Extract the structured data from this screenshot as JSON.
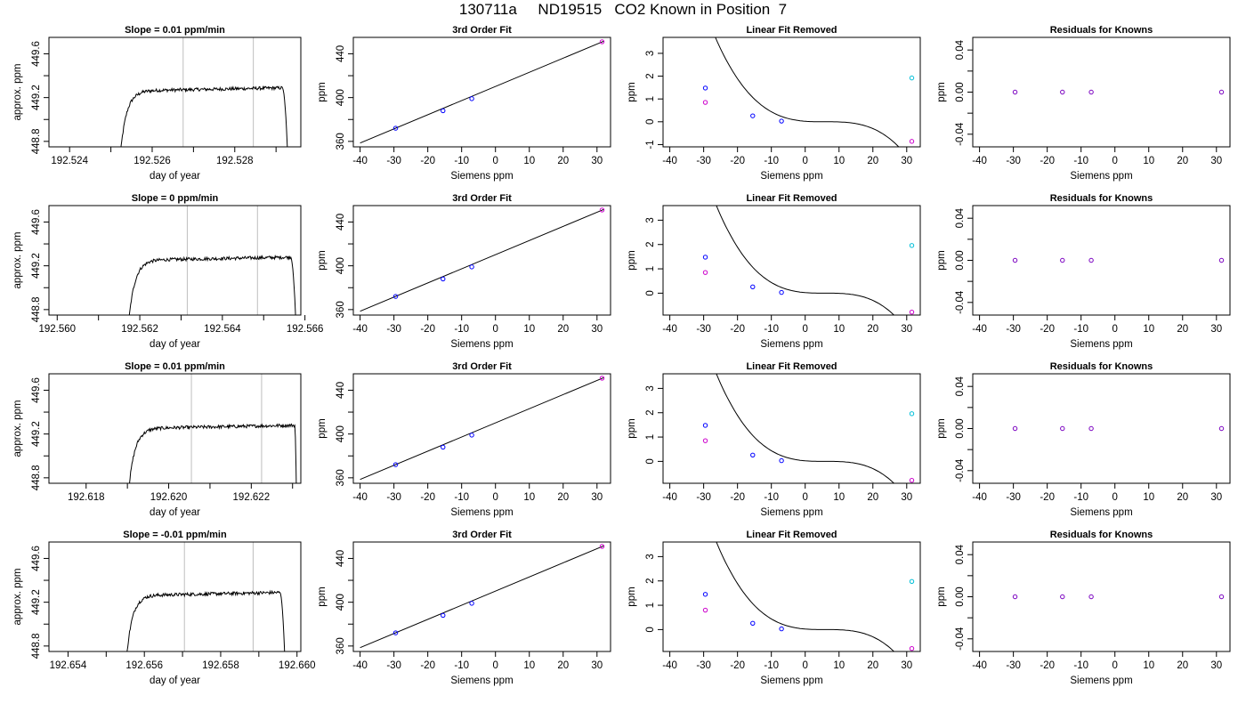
{
  "figure": {
    "title": "130711a     ND19515   CO2 Known in Position  7"
  },
  "colors": {
    "trace": "#000000",
    "window_line": "#bebebe",
    "known_points": "#0000ff",
    "high_known": "#cc00cc",
    "target_point": "#00bfd8",
    "residual_points": "#7a00c0"
  },
  "chart_data": [
    {
      "type": "line",
      "panel": "trace",
      "row": 1,
      "title": "Slope =  0.01  ppm/min",
      "xlabel": "day of year",
      "ylabel": "approx. ppm",
      "xlim": [
        192.5235,
        192.5296
      ],
      "ylim": [
        448.75,
        449.75
      ],
      "xticks": [
        192.524,
        192.525,
        192.526,
        192.527,
        192.528,
        192.529
      ],
      "xtick_labels": [
        "192.524",
        "",
        "192.526",
        "",
        "192.528",
        ""
      ],
      "yticks": [
        448.8,
        449.0,
        449.2,
        449.4,
        449.6
      ],
      "ytick_labels": [
        "448.8",
        "",
        "449.2",
        "",
        "449.6"
      ],
      "windows": [
        192.52675,
        192.52845
      ],
      "trace_start": 192.5252,
      "trace_end": 192.5293,
      "plateau": 449.29,
      "end_drop": 192.52915
    },
    {
      "type": "line",
      "panel": "trace",
      "row": 2,
      "title": "Slope =  0  ppm/min",
      "xlabel": "day of year",
      "ylabel": "approx. ppm",
      "xlim": [
        192.5598,
        192.5659
      ],
      "ylim": [
        448.75,
        449.75
      ],
      "xticks": [
        192.56,
        192.561,
        192.562,
        192.563,
        192.564,
        192.565,
        192.566
      ],
      "xtick_labels": [
        "192.560",
        "",
        "192.562",
        "",
        "192.564",
        "",
        "192.566"
      ],
      "yticks": [
        448.8,
        449.0,
        449.2,
        449.4,
        449.6
      ],
      "ytick_labels": [
        "448.8",
        "",
        "449.2",
        "",
        "449.6"
      ],
      "windows": [
        192.56315,
        192.56485
      ],
      "trace_start": 192.5617,
      "trace_end": 192.5658,
      "plateau": 449.28,
      "end_drop": 192.56565
    },
    {
      "type": "line",
      "panel": "trace",
      "row": 3,
      "title": "Slope =  0.01  ppm/min",
      "xlabel": "day of year",
      "ylabel": "approx. ppm",
      "xlim": [
        192.6171,
        192.6232
      ],
      "ylim": [
        448.75,
        449.75
      ],
      "xticks": [
        192.618,
        192.619,
        192.62,
        192.621,
        192.622,
        192.623
      ],
      "xtick_labels": [
        "192.618",
        "",
        "192.620",
        "",
        "192.622",
        ""
      ],
      "yticks": [
        448.8,
        449.0,
        449.2,
        449.4,
        449.6
      ],
      "ytick_labels": [
        "448.8",
        "",
        "449.2",
        "",
        "449.6"
      ],
      "windows": [
        192.62055,
        192.62225
      ],
      "trace_start": 192.619,
      "trace_end": 192.6231,
      "plateau": 449.28,
      "end_drop": 192.62305
    },
    {
      "type": "line",
      "panel": "trace",
      "row": 4,
      "title": "Slope =  -0.01  ppm/min",
      "xlabel": "day of year",
      "ylabel": "approx. ppm",
      "xlim": [
        192.6535,
        192.6601
      ],
      "ylim": [
        448.75,
        449.75
      ],
      "xticks": [
        192.654,
        192.655,
        192.656,
        192.657,
        192.658,
        192.659,
        192.66
      ],
      "xtick_labels": [
        "192.654",
        "",
        "192.656",
        "",
        "192.658",
        "",
        "192.660"
      ],
      "yticks": [
        448.8,
        449.0,
        449.2,
        449.4,
        449.6
      ],
      "ytick_labels": [
        "448.8",
        "",
        "449.2",
        "",
        "449.6"
      ],
      "windows": [
        192.65705,
        192.65885
      ],
      "trace_start": 192.6555,
      "trace_end": 192.6597,
      "plateau": 449.29,
      "end_drop": 192.65955
    },
    {
      "type": "scatter",
      "panel": "fit",
      "row": 1,
      "title": "3rd Order Fit",
      "xlabel": "Siemens ppm",
      "ylabel": "ppm",
      "xlim": [
        -42,
        34
      ],
      "ylim": [
        355,
        455
      ],
      "xticks": [
        -40,
        -30,
        -20,
        -10,
        0,
        10,
        20,
        30
      ],
      "yticks": [
        360,
        380,
        400,
        420,
        440
      ],
      "ytick_labels": [
        "360",
        "",
        "400",
        "",
        "440"
      ],
      "line": [
        [
          -40,
          358.5
        ],
        [
          32,
          451.5
        ]
      ],
      "points": [
        {
          "x": -29.5,
          "y": 372,
          "c": "known"
        },
        {
          "x": -15.5,
          "y": 388,
          "c": "known"
        },
        {
          "x": -7,
          "y": 399,
          "c": "known"
        },
        {
          "x": 31.5,
          "y": 451,
          "c": "high"
        }
      ]
    },
    {
      "type": "scatter",
      "panel": "fit",
      "row": 2,
      "title": "3rd Order Fit",
      "xlabel": "Siemens ppm",
      "ylabel": "ppm",
      "xlim": [
        -42,
        34
      ],
      "ylim": [
        355,
        455
      ],
      "xticks": [
        -40,
        -30,
        -20,
        -10,
        0,
        10,
        20,
        30
      ],
      "yticks": [
        360,
        380,
        400,
        420,
        440
      ],
      "ytick_labels": [
        "360",
        "",
        "400",
        "",
        "440"
      ],
      "line": [
        [
          -40,
          358.5
        ],
        [
          32,
          451.5
        ]
      ],
      "points": [
        {
          "x": -29.5,
          "y": 372,
          "c": "known"
        },
        {
          "x": -15.5,
          "y": 388,
          "c": "known"
        },
        {
          "x": -7,
          "y": 399,
          "c": "known"
        },
        {
          "x": 31.5,
          "y": 451,
          "c": "high"
        }
      ]
    },
    {
      "type": "scatter",
      "panel": "fit",
      "row": 3,
      "title": "3rd Order Fit",
      "xlabel": "Siemens ppm",
      "ylabel": "ppm",
      "xlim": [
        -42,
        34
      ],
      "ylim": [
        355,
        455
      ],
      "xticks": [
        -40,
        -30,
        -20,
        -10,
        0,
        10,
        20,
        30
      ],
      "yticks": [
        360,
        380,
        400,
        420,
        440
      ],
      "ytick_labels": [
        "360",
        "",
        "400",
        "",
        "440"
      ],
      "line": [
        [
          -40,
          358.5
        ],
        [
          32,
          451.5
        ]
      ],
      "points": [
        {
          "x": -29.5,
          "y": 372,
          "c": "known"
        },
        {
          "x": -15.5,
          "y": 388,
          "c": "known"
        },
        {
          "x": -7,
          "y": 399,
          "c": "known"
        },
        {
          "x": 31.5,
          "y": 451,
          "c": "high"
        }
      ]
    },
    {
      "type": "scatter",
      "panel": "fit",
      "row": 4,
      "title": "3rd Order Fit",
      "xlabel": "Siemens ppm",
      "ylabel": "ppm",
      "xlim": [
        -42,
        34
      ],
      "ylim": [
        355,
        455
      ],
      "xticks": [
        -40,
        -30,
        -20,
        -10,
        0,
        10,
        20,
        30
      ],
      "yticks": [
        360,
        380,
        400,
        420,
        440
      ],
      "ytick_labels": [
        "360",
        "",
        "400",
        "",
        "440"
      ],
      "line": [
        [
          -40,
          358.5
        ],
        [
          32,
          451.5
        ]
      ],
      "points": [
        {
          "x": -29.5,
          "y": 372,
          "c": "known"
        },
        {
          "x": -15.5,
          "y": 388,
          "c": "known"
        },
        {
          "x": -7,
          "y": 399,
          "c": "known"
        },
        {
          "x": 31.5,
          "y": 451,
          "c": "high"
        }
      ]
    },
    {
      "type": "scatter",
      "panel": "linear",
      "row": 1,
      "title": "Linear Fit Removed",
      "xlabel": "Siemens ppm",
      "ylabel": "ppm",
      "xlim": [
        -42,
        34
      ],
      "ylim": [
        -1.1,
        3.7
      ],
      "xticks": [
        -40,
        -30,
        -20,
        -10,
        0,
        10,
        20,
        30
      ],
      "yticks": [
        -1,
        0,
        1,
        2,
        3
      ],
      "ytick_labels": [
        "-1",
        "0",
        "1",
        "2",
        "3"
      ],
      "cubic_a": 0.000108,
      "cubic_root": 5.95,
      "points": [
        {
          "x": -29.5,
          "y": 1.48,
          "c": "known"
        },
        {
          "x": -15.5,
          "y": 0.26,
          "c": "known"
        },
        {
          "x": -7,
          "y": 0.03,
          "c": "known"
        },
        {
          "x": 31.5,
          "y": -0.86,
          "c": "high"
        },
        {
          "x": -29.5,
          "y": 0.85,
          "c": "high"
        },
        {
          "x": 31.5,
          "y": 1.92,
          "c": "target"
        }
      ]
    },
    {
      "type": "scatter",
      "panel": "linear",
      "row": 2,
      "title": "Linear Fit Removed",
      "xlabel": "Siemens ppm",
      "ylabel": "ppm",
      "xlim": [
        -42,
        34
      ],
      "ylim": [
        -0.9,
        3.6
      ],
      "xticks": [
        -40,
        -30,
        -20,
        -10,
        0,
        10,
        20,
        30
      ],
      "yticks": [
        0,
        1,
        2,
        3
      ],
      "ytick_labels": [
        "0",
        "1",
        "2",
        "3"
      ],
      "cubic_a": 0.000108,
      "cubic_root": 5.95,
      "points": [
        {
          "x": -29.5,
          "y": 1.48,
          "c": "known"
        },
        {
          "x": -15.5,
          "y": 0.26,
          "c": "known"
        },
        {
          "x": -7,
          "y": 0.03,
          "c": "known"
        },
        {
          "x": 31.5,
          "y": -0.78,
          "c": "high"
        },
        {
          "x": -29.5,
          "y": 0.85,
          "c": "high"
        },
        {
          "x": 31.5,
          "y": 1.96,
          "c": "target"
        }
      ]
    },
    {
      "type": "scatter",
      "panel": "linear",
      "row": 3,
      "title": "Linear Fit Removed",
      "xlabel": "Siemens ppm",
      "ylabel": "ppm",
      "xlim": [
        -42,
        34
      ],
      "ylim": [
        -0.9,
        3.6
      ],
      "xticks": [
        -40,
        -30,
        -20,
        -10,
        0,
        10,
        20,
        30
      ],
      "yticks": [
        0,
        1,
        2,
        3
      ],
      "ytick_labels": [
        "0",
        "1",
        "2",
        "3"
      ],
      "cubic_a": 0.000108,
      "cubic_root": 5.95,
      "points": [
        {
          "x": -29.5,
          "y": 1.48,
          "c": "known"
        },
        {
          "x": -15.5,
          "y": 0.26,
          "c": "known"
        },
        {
          "x": -7,
          "y": 0.03,
          "c": "known"
        },
        {
          "x": 31.5,
          "y": -0.78,
          "c": "high"
        },
        {
          "x": -29.5,
          "y": 0.85,
          "c": "high"
        },
        {
          "x": 31.5,
          "y": 1.96,
          "c": "target"
        }
      ]
    },
    {
      "type": "scatter",
      "panel": "linear",
      "row": 4,
      "title": "Linear Fit Removed",
      "xlabel": "Siemens ppm",
      "ylabel": "ppm",
      "xlim": [
        -42,
        34
      ],
      "ylim": [
        -0.9,
        3.6
      ],
      "xticks": [
        -40,
        -30,
        -20,
        -10,
        0,
        10,
        20,
        30
      ],
      "yticks": [
        0,
        1,
        2,
        3
      ],
      "ytick_labels": [
        "0",
        "1",
        "2",
        "3"
      ],
      "cubic_a": 0.000108,
      "cubic_root": 5.95,
      "points": [
        {
          "x": -29.5,
          "y": 1.45,
          "c": "known"
        },
        {
          "x": -15.5,
          "y": 0.26,
          "c": "known"
        },
        {
          "x": -7,
          "y": 0.03,
          "c": "known"
        },
        {
          "x": 31.5,
          "y": -0.78,
          "c": "high"
        },
        {
          "x": -29.5,
          "y": 0.8,
          "c": "high"
        },
        {
          "x": 31.5,
          "y": 1.98,
          "c": "target"
        }
      ]
    },
    {
      "type": "scatter",
      "panel": "resid",
      "row": 1,
      "title": "Residuals for Knowns",
      "xlabel": "Siemens ppm",
      "ylabel": "ppm",
      "xlim": [
        -42,
        34
      ],
      "ylim": [
        -0.052,
        0.052
      ],
      "xticks": [
        -40,
        -30,
        -20,
        -10,
        0,
        10,
        20,
        30
      ],
      "yticks": [
        -0.04,
        -0.02,
        0,
        0.02,
        0.04
      ],
      "ytick_labels": [
        "-0.04",
        "",
        "0.00",
        "",
        "0.04"
      ],
      "points": [
        {
          "x": -29.5,
          "y": 0
        },
        {
          "x": -15.5,
          "y": 0
        },
        {
          "x": -7,
          "y": 0
        },
        {
          "x": 31.5,
          "y": 0
        }
      ]
    },
    {
      "type": "scatter",
      "panel": "resid",
      "row": 2,
      "title": "Residuals for Knowns",
      "xlabel": "Siemens ppm",
      "ylabel": "ppm",
      "xlim": [
        -42,
        34
      ],
      "ylim": [
        -0.052,
        0.052
      ],
      "xticks": [
        -40,
        -30,
        -20,
        -10,
        0,
        10,
        20,
        30
      ],
      "yticks": [
        -0.04,
        -0.02,
        0,
        0.02,
        0.04
      ],
      "ytick_labels": [
        "-0.04",
        "",
        "0.00",
        "",
        "0.04"
      ],
      "points": [
        {
          "x": -29.5,
          "y": 0
        },
        {
          "x": -15.5,
          "y": 0
        },
        {
          "x": -7,
          "y": 0
        },
        {
          "x": 31.5,
          "y": 0
        }
      ]
    },
    {
      "type": "scatter",
      "panel": "resid",
      "row": 3,
      "title": "Residuals for Knowns",
      "xlabel": "Siemens ppm",
      "ylabel": "ppm",
      "xlim": [
        -42,
        34
      ],
      "ylim": [
        -0.052,
        0.052
      ],
      "xticks": [
        -40,
        -30,
        -20,
        -10,
        0,
        10,
        20,
        30
      ],
      "yticks": [
        -0.04,
        -0.02,
        0,
        0.02,
        0.04
      ],
      "ytick_labels": [
        "-0.04",
        "",
        "0.00",
        "",
        "0.04"
      ],
      "points": [
        {
          "x": -29.5,
          "y": 0
        },
        {
          "x": -15.5,
          "y": 0
        },
        {
          "x": -7,
          "y": 0
        },
        {
          "x": 31.5,
          "y": 0
        }
      ]
    },
    {
      "type": "scatter",
      "panel": "resid",
      "row": 4,
      "title": "Residuals for Knowns",
      "xlabel": "Siemens ppm",
      "ylabel": "ppm",
      "xlim": [
        -42,
        34
      ],
      "ylim": [
        -0.052,
        0.052
      ],
      "xticks": [
        -40,
        -30,
        -20,
        -10,
        0,
        10,
        20,
        30
      ],
      "yticks": [
        -0.04,
        -0.02,
        0,
        0.02,
        0.04
      ],
      "ytick_labels": [
        "-0.04",
        "",
        "0.00",
        "",
        "0.04"
      ],
      "points": [
        {
          "x": -29.5,
          "y": 0
        },
        {
          "x": -15.5,
          "y": 0
        },
        {
          "x": -7,
          "y": 0
        },
        {
          "x": 31.5,
          "y": 0
        }
      ]
    }
  ]
}
